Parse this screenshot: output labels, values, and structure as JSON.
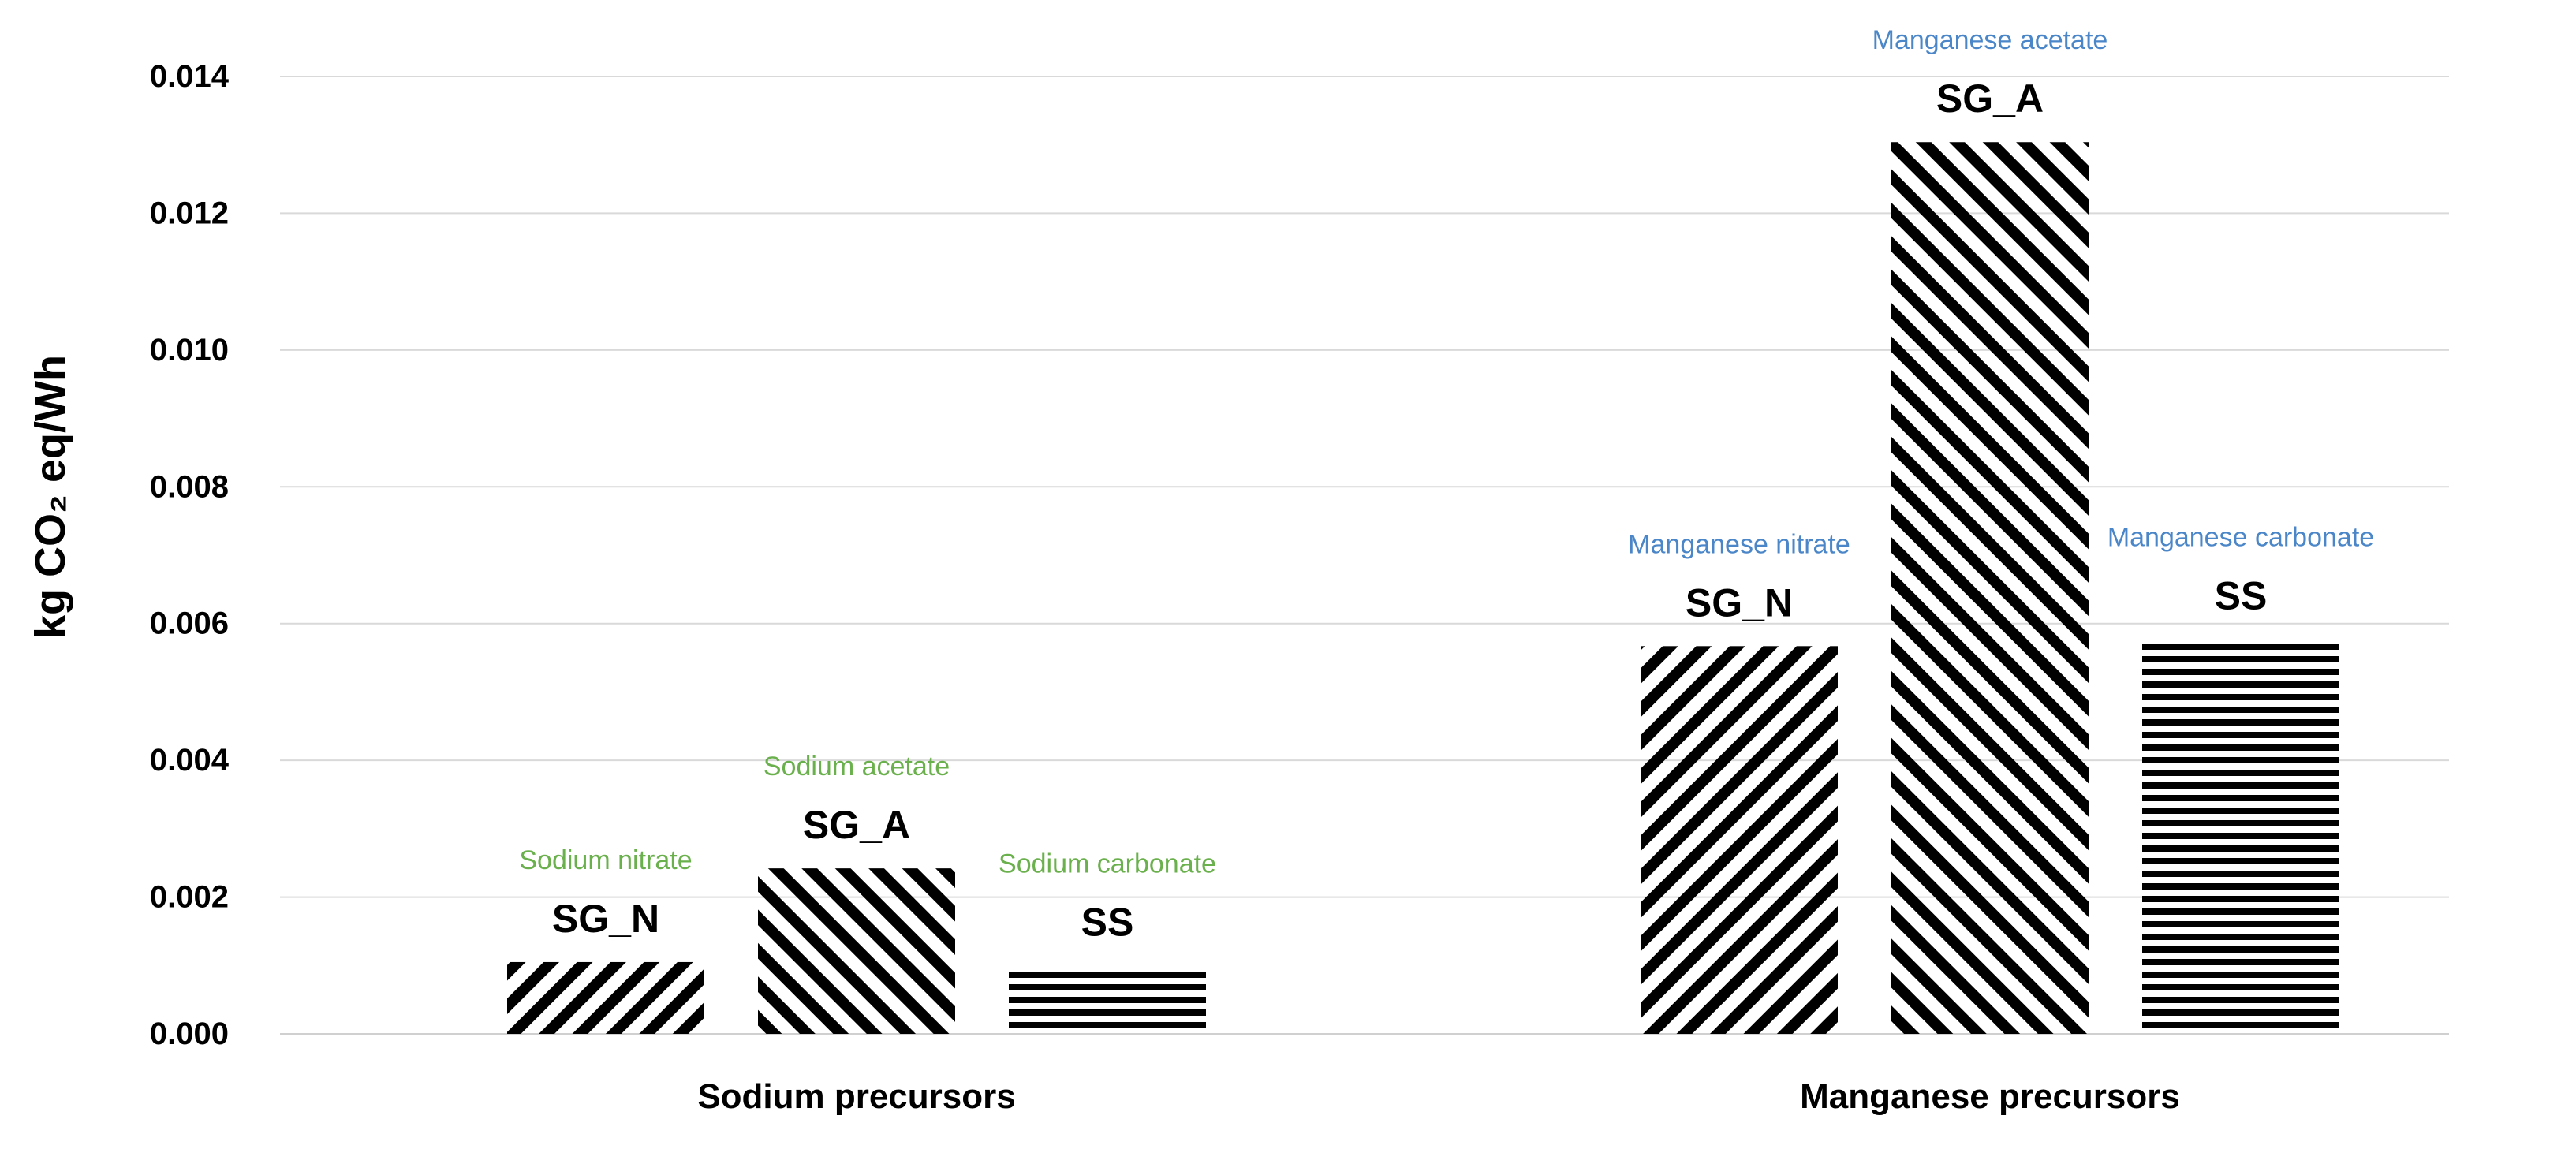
{
  "chart_data": {
    "type": "bar",
    "ylabel": "kg CO₂ eq/Wh",
    "ylim": [
      0,
      0.014
    ],
    "yticks": [
      "0.000",
      "0.002",
      "0.004",
      "0.006",
      "0.008",
      "0.010",
      "0.012",
      "0.014"
    ],
    "grid": true,
    "groups": [
      {
        "label": "Sodium precursors",
        "precursor_color": "#6ab04c",
        "bars": [
          {
            "label": "SG_N",
            "precursor": "Sodium nitrate",
            "value": 0.00105,
            "pattern": "backslash"
          },
          {
            "label": "SG_A",
            "precursor": "Sodium acetate",
            "value": 0.00242,
            "pattern": "slash"
          },
          {
            "label": "SS",
            "precursor": "Sodium carbonate",
            "value": 0.001,
            "pattern": "horizontal"
          }
        ]
      },
      {
        "label": "Manganese precursors",
        "precursor_color": "#4a86c8",
        "bars": [
          {
            "label": "SG_N",
            "precursor": "Manganese nitrate",
            "value": 0.00567,
            "pattern": "backslash"
          },
          {
            "label": "SG_A",
            "precursor": "Manganese acetate",
            "value": 0.01304,
            "pattern": "slash"
          },
          {
            "label": "SS",
            "precursor": "Manganese carbonate",
            "value": 0.00577,
            "pattern": "horizontal"
          }
        ]
      }
    ]
  }
}
